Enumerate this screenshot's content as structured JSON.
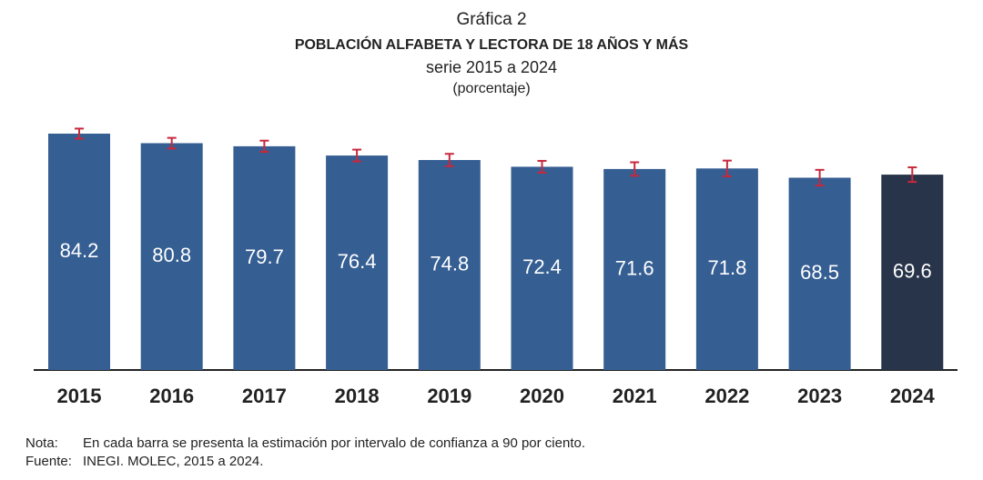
{
  "chart_data": {
    "type": "bar",
    "title": "Gráfica 2",
    "subtitle": "POBLACIÓN ALFABETA Y LECTORA DE 18 AÑOS Y MÁS",
    "series_label": "serie 2015 a 2024",
    "unit_label": "(porcentaje)",
    "categories": [
      "2015",
      "2016",
      "2017",
      "2018",
      "2019",
      "2020",
      "2021",
      "2022",
      "2023",
      "2024"
    ],
    "values": [
      84.2,
      80.8,
      79.7,
      76.4,
      74.8,
      72.4,
      71.6,
      71.8,
      68.5,
      69.6
    ],
    "errors": [
      1.8,
      1.9,
      2.0,
      2.1,
      2.2,
      2.1,
      2.4,
      2.8,
      2.8,
      2.6
    ],
    "colors": [
      "#355e92",
      "#355e92",
      "#355e92",
      "#355e92",
      "#355e92",
      "#355e92",
      "#355e92",
      "#355e92",
      "#355e92",
      "#28344a"
    ],
    "error_color": "#c8283c",
    "notes": [
      {
        "label": "Nota:",
        "text": "En cada barra se presenta la estimación por intervalo de confianza a 90 por ciento."
      },
      {
        "label": "Fuente:",
        "text": "INEGI. MOLEC, 2015 a 2024."
      }
    ]
  }
}
